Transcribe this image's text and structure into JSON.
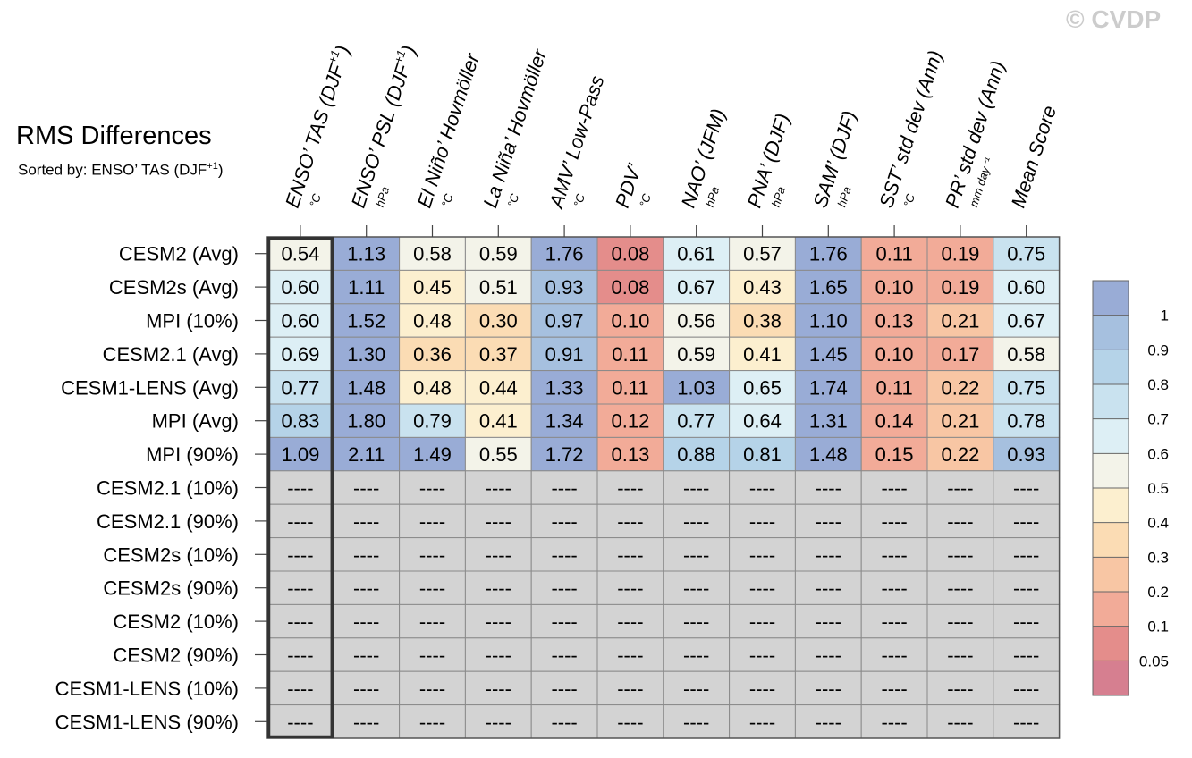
{
  "watermark": "© CVDP",
  "title": "RMS Differences",
  "subtitle": {
    "prefix": "Sorted by: ENSO’ TAS (DJF",
    "sup": "+1",
    "suffix": ")"
  },
  "colors": {
    "grid_line": "#8a8a8a",
    "missing_fill": "#d3d3d3",
    "sorted_column_border": "#333333"
  },
  "chart_data": {
    "type": "heatmap",
    "title": "RMS Differences",
    "sorted_by": "ENSO’ TAS (DJF+1)",
    "columns": [
      {
        "name": "ENSO’ TAS (DJF",
        "sup": "+1",
        "close": ")",
        "unit": "°C"
      },
      {
        "name": "ENSO’ PSL (DJF",
        "sup": "+1",
        "close": ")",
        "unit": "hPa"
      },
      {
        "name": "El Niño’ Hovmöller",
        "sup": "",
        "close": "",
        "unit": "°C"
      },
      {
        "name": "La Niña’ Hovmöller",
        "sup": "",
        "close": "",
        "unit": "°C"
      },
      {
        "name": "AMV’ Low-Pass",
        "sup": "",
        "close": "",
        "unit": "°C"
      },
      {
        "name": "PDV’",
        "sup": "",
        "close": "",
        "unit": "°C"
      },
      {
        "name": "NAO’ (JFM)",
        "sup": "",
        "close": "",
        "unit": "hPa"
      },
      {
        "name": "PNA’ (DJF)",
        "sup": "",
        "close": "",
        "unit": "hPa"
      },
      {
        "name": "SAM’ (DJF)",
        "sup": "",
        "close": "",
        "unit": "hPa"
      },
      {
        "name": "SST’ std dev (Ann)",
        "sup": "",
        "close": "",
        "unit": "°C"
      },
      {
        "name": "PR’ std dev (Ann)",
        "sup": "",
        "close": "",
        "unit": "mm day⁻¹"
      },
      {
        "name": "Mean Score",
        "sup": "",
        "close": "",
        "unit": ""
      }
    ],
    "rows": [
      "CESM2 (Avg)",
      "CESM2s (Avg)",
      "MPI (10%)",
      "CESM2.1 (Avg)",
      "CESM1-LENS (Avg)",
      "MPI (Avg)",
      "MPI (90%)",
      "CESM2.1 (10%)",
      "CESM2.1 (90%)",
      "CESM2s (10%)",
      "CESM2s (90%)",
      "CESM2 (10%)",
      "CESM2 (90%)",
      "CESM1-LENS (10%)",
      "CESM1-LENS (90%)"
    ],
    "values": [
      [
        "0.54",
        "1.13",
        "0.58",
        "0.59",
        "1.76",
        "0.08",
        "0.61",
        "0.57",
        "1.76",
        "0.11",
        "0.19",
        "0.75"
      ],
      [
        "0.60",
        "1.11",
        "0.45",
        "0.51",
        "0.93",
        "0.08",
        "0.67",
        "0.43",
        "1.65",
        "0.10",
        "0.19",
        "0.60"
      ],
      [
        "0.60",
        "1.52",
        "0.48",
        "0.30",
        "0.97",
        "0.10",
        "0.56",
        "0.38",
        "1.10",
        "0.13",
        "0.21",
        "0.67"
      ],
      [
        "0.69",
        "1.30",
        "0.36",
        "0.37",
        "0.91",
        "0.11",
        "0.59",
        "0.41",
        "1.45",
        "0.10",
        "0.17",
        "0.58"
      ],
      [
        "0.77",
        "1.48",
        "0.48",
        "0.44",
        "1.33",
        "0.11",
        "1.03",
        "0.65",
        "1.74",
        "0.11",
        "0.22",
        "0.75"
      ],
      [
        "0.83",
        "1.80",
        "0.79",
        "0.41",
        "1.34",
        "0.12",
        "0.77",
        "0.64",
        "1.31",
        "0.14",
        "0.21",
        "0.78"
      ],
      [
        "1.09",
        "2.11",
        "1.49",
        "0.55",
        "1.72",
        "0.13",
        "0.88",
        "0.81",
        "1.48",
        "0.15",
        "0.22",
        "0.93"
      ]
    ],
    "missing_label": "----",
    "colorbar": {
      "tick_labels": [
        "1",
        "0.9",
        "0.8",
        "0.7",
        "0.6",
        "0.5",
        "0.4",
        "0.3",
        "0.2",
        "0.1",
        "0.05"
      ],
      "bins": [
        {
          "min": 1.0,
          "max": 99,
          "color": "#99acd6"
        },
        {
          "min": 0.9,
          "max": 1.0,
          "color": "#a6c0df"
        },
        {
          "min": 0.8,
          "max": 0.9,
          "color": "#b5d3e8"
        },
        {
          "min": 0.7,
          "max": 0.8,
          "color": "#c9e2ef"
        },
        {
          "min": 0.6,
          "max": 0.7,
          "color": "#ddeff5"
        },
        {
          "min": 0.5,
          "max": 0.6,
          "color": "#f3f3e9"
        },
        {
          "min": 0.4,
          "max": 0.5,
          "color": "#fcefcf"
        },
        {
          "min": 0.3,
          "max": 0.4,
          "color": "#fbdcb4"
        },
        {
          "min": 0.2,
          "max": 0.3,
          "color": "#f8c6a4"
        },
        {
          "min": 0.1,
          "max": 0.2,
          "color": "#f2ab98"
        },
        {
          "min": 0.05,
          "max": 0.1,
          "color": "#e48d8b"
        },
        {
          "min": 0.0,
          "max": 0.05,
          "color": "#d67f90"
        }
      ]
    }
  }
}
